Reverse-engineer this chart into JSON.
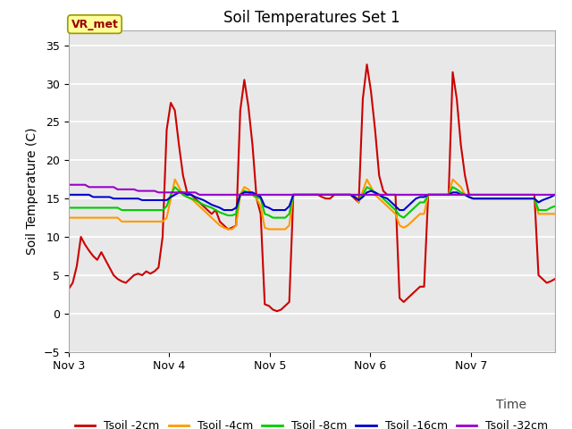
{
  "title": "Soil Temperatures Set 1",
  "xlabel": "Time",
  "ylabel": "Soil Temperature (C)",
  "ylim": [
    -5,
    37
  ],
  "yticks": [
    -5,
    0,
    5,
    10,
    15,
    20,
    25,
    30,
    35
  ],
  "background_color": "#e8e8e8",
  "fig_background": "#ffffff",
  "annotation_text": "VR_met",
  "annotation_bg": "#ffff99",
  "annotation_border": "#aaaaaa",
  "annotation_fg": "#990000",
  "legend_entries": [
    "Tsoil -2cm",
    "Tsoil -4cm",
    "Tsoil -8cm",
    "Tsoil -16cm",
    "Tsoil -32cm"
  ],
  "line_colors": [
    "#cc0000",
    "#ff9900",
    "#00cc00",
    "#0000cc",
    "#9900cc"
  ],
  "xtick_labels": [
    "Nov 3",
    "Nov 4",
    "Nov 5",
    "Nov 6",
    "Nov 7"
  ],
  "xtick_positions": [
    0,
    24,
    48,
    72,
    96
  ],
  "total_hours": 116,
  "series": {
    "Tsoil_2cm": [
      3.2,
      4.0,
      6.2,
      10.0,
      9.0,
      8.2,
      7.5,
      7.0,
      8.0,
      7.0,
      6.0,
      5.0,
      4.5,
      4.2,
      4.0,
      4.5,
      5.0,
      5.2,
      5.0,
      5.5,
      5.2,
      5.5,
      6.0,
      10.0,
      24.0,
      27.5,
      26.5,
      22.0,
      18.0,
      15.8,
      15.5,
      15.0,
      14.5,
      14.0,
      13.5,
      13.0,
      13.5,
      12.0,
      11.5,
      11.0,
      11.2,
      11.5,
      26.5,
      30.5,
      27.0,
      22.0,
      15.0,
      13.0,
      1.2,
      1.0,
      0.5,
      0.3,
      0.5,
      1.0,
      1.5,
      15.5,
      15.5,
      15.5,
      15.5,
      15.5,
      15.5,
      15.5,
      15.2,
      15.0,
      15.0,
      15.5,
      15.5,
      15.5,
      15.5,
      15.5,
      15.0,
      14.5,
      28.0,
      32.5,
      29.0,
      24.0,
      18.0,
      16.0,
      15.5,
      15.5,
      15.5,
      2.0,
      1.5,
      2.0,
      2.5,
      3.0,
      3.5,
      3.5,
      15.5,
      15.5,
      15.5,
      15.5,
      15.5,
      15.5,
      31.5,
      28.0,
      22.0,
      18.0,
      15.5,
      15.5,
      15.5,
      15.5,
      15.5,
      15.5,
      15.5,
      15.5,
      15.5,
      15.5,
      15.5,
      15.5,
      15.5,
      15.5,
      15.5,
      15.5,
      15.5,
      5.0,
      4.5,
      4.0,
      4.2,
      4.5
    ],
    "Tsoil_4cm": [
      12.5,
      12.5,
      12.5,
      12.5,
      12.5,
      12.5,
      12.5,
      12.5,
      12.5,
      12.5,
      12.5,
      12.5,
      12.5,
      12.0,
      12.0,
      12.0,
      12.0,
      12.0,
      12.0,
      12.0,
      12.0,
      12.0,
      12.0,
      12.0,
      12.5,
      15.0,
      17.5,
      16.5,
      15.5,
      15.2,
      15.0,
      14.5,
      14.0,
      13.5,
      13.0,
      12.5,
      12.0,
      11.5,
      11.2,
      11.0,
      11.0,
      11.5,
      15.5,
      16.5,
      16.2,
      15.5,
      15.0,
      14.0,
      11.2,
      11.0,
      11.0,
      11.0,
      11.0,
      11.0,
      11.5,
      15.5,
      15.5,
      15.5,
      15.5,
      15.5,
      15.5,
      15.5,
      15.5,
      15.5,
      15.5,
      15.5,
      15.5,
      15.5,
      15.5,
      15.5,
      15.5,
      14.5,
      16.0,
      17.5,
      16.5,
      15.5,
      15.0,
      14.5,
      14.0,
      13.5,
      13.0,
      11.5,
      11.2,
      11.5,
      12.0,
      12.5,
      13.0,
      13.0,
      15.5,
      15.5,
      15.5,
      15.5,
      15.5,
      15.5,
      17.5,
      17.0,
      16.5,
      15.5,
      15.2,
      15.0,
      15.0,
      15.0,
      15.0,
      15.0,
      15.0,
      15.0,
      15.0,
      15.0,
      15.0,
      15.0,
      15.0,
      15.0,
      15.0,
      15.0,
      15.0,
      13.0,
      13.0,
      13.0,
      13.0,
      13.0
    ],
    "Tsoil_8cm": [
      13.8,
      13.8,
      13.8,
      13.8,
      13.8,
      13.8,
      13.8,
      13.8,
      13.8,
      13.8,
      13.8,
      13.8,
      13.8,
      13.5,
      13.5,
      13.5,
      13.5,
      13.5,
      13.5,
      13.5,
      13.5,
      13.5,
      13.5,
      13.5,
      14.0,
      15.5,
      16.5,
      16.0,
      15.5,
      15.2,
      15.0,
      14.8,
      14.5,
      14.2,
      14.0,
      13.8,
      13.5,
      13.2,
      13.0,
      12.8,
      12.8,
      13.0,
      15.5,
      16.0,
      15.8,
      15.5,
      15.2,
      15.0,
      13.0,
      12.8,
      12.5,
      12.5,
      12.5,
      12.5,
      13.0,
      15.5,
      15.5,
      15.5,
      15.5,
      15.5,
      15.5,
      15.5,
      15.5,
      15.5,
      15.5,
      15.5,
      15.5,
      15.5,
      15.5,
      15.5,
      15.2,
      14.8,
      15.5,
      16.5,
      16.2,
      15.8,
      15.5,
      15.0,
      14.5,
      14.0,
      13.5,
      12.8,
      12.5,
      13.0,
      13.5,
      14.0,
      14.5,
      14.5,
      15.5,
      15.5,
      15.5,
      15.5,
      15.5,
      15.5,
      16.5,
      16.2,
      15.8,
      15.5,
      15.2,
      15.0,
      15.0,
      15.0,
      15.0,
      15.0,
      15.0,
      15.0,
      15.0,
      15.0,
      15.0,
      15.0,
      15.0,
      15.0,
      15.0,
      15.0,
      15.0,
      13.5,
      13.5,
      13.5,
      13.8,
      14.0
    ],
    "Tsoil_16cm": [
      15.5,
      15.5,
      15.5,
      15.5,
      15.5,
      15.5,
      15.2,
      15.2,
      15.2,
      15.2,
      15.2,
      15.0,
      15.0,
      15.0,
      15.0,
      15.0,
      15.0,
      15.0,
      14.8,
      14.8,
      14.8,
      14.8,
      14.8,
      14.8,
      14.8,
      15.2,
      15.5,
      15.8,
      15.8,
      15.5,
      15.5,
      15.2,
      15.0,
      14.8,
      14.5,
      14.2,
      14.0,
      13.8,
      13.5,
      13.5,
      13.5,
      13.8,
      15.5,
      15.8,
      15.8,
      15.8,
      15.5,
      15.2,
      14.0,
      13.8,
      13.5,
      13.5,
      13.5,
      13.5,
      14.0,
      15.5,
      15.5,
      15.5,
      15.5,
      15.5,
      15.5,
      15.5,
      15.5,
      15.5,
      15.5,
      15.5,
      15.5,
      15.5,
      15.5,
      15.5,
      15.2,
      14.8,
      15.2,
      15.8,
      16.0,
      15.8,
      15.5,
      15.2,
      15.0,
      14.5,
      14.0,
      13.5,
      13.5,
      14.0,
      14.5,
      15.0,
      15.2,
      15.2,
      15.5,
      15.5,
      15.5,
      15.5,
      15.5,
      15.5,
      15.8,
      15.8,
      15.5,
      15.5,
      15.2,
      15.0,
      15.0,
      15.0,
      15.0,
      15.0,
      15.0,
      15.0,
      15.0,
      15.0,
      15.0,
      15.0,
      15.0,
      15.0,
      15.0,
      15.0,
      15.0,
      14.5,
      14.8,
      15.0,
      15.2,
      15.5
    ],
    "Tsoil_32cm": [
      16.8,
      16.8,
      16.8,
      16.8,
      16.8,
      16.5,
      16.5,
      16.5,
      16.5,
      16.5,
      16.5,
      16.5,
      16.2,
      16.2,
      16.2,
      16.2,
      16.2,
      16.0,
      16.0,
      16.0,
      16.0,
      16.0,
      15.8,
      15.8,
      15.8,
      15.8,
      15.8,
      15.8,
      15.8,
      15.8,
      15.8,
      15.8,
      15.5,
      15.5,
      15.5,
      15.5,
      15.5,
      15.5,
      15.5,
      15.5,
      15.5,
      15.5,
      15.5,
      15.5,
      15.5,
      15.5,
      15.5,
      15.5,
      15.5,
      15.5,
      15.5,
      15.5,
      15.5,
      15.5,
      15.5,
      15.5,
      15.5,
      15.5,
      15.5,
      15.5,
      15.5,
      15.5,
      15.5,
      15.5,
      15.5,
      15.5,
      15.5,
      15.5,
      15.5,
      15.5,
      15.5,
      15.5,
      15.5,
      15.5,
      15.5,
      15.5,
      15.5,
      15.5,
      15.5,
      15.5,
      15.5,
      15.5,
      15.5,
      15.5,
      15.5,
      15.5,
      15.5,
      15.5,
      15.5,
      15.5,
      15.5,
      15.5,
      15.5,
      15.5,
      15.5,
      15.5,
      15.5,
      15.5,
      15.5,
      15.5,
      15.5,
      15.5,
      15.5,
      15.5,
      15.5,
      15.5,
      15.5,
      15.5,
      15.5,
      15.5,
      15.5,
      15.5,
      15.5,
      15.5,
      15.5,
      15.5,
      15.5,
      15.5,
      15.5,
      15.5
    ]
  }
}
